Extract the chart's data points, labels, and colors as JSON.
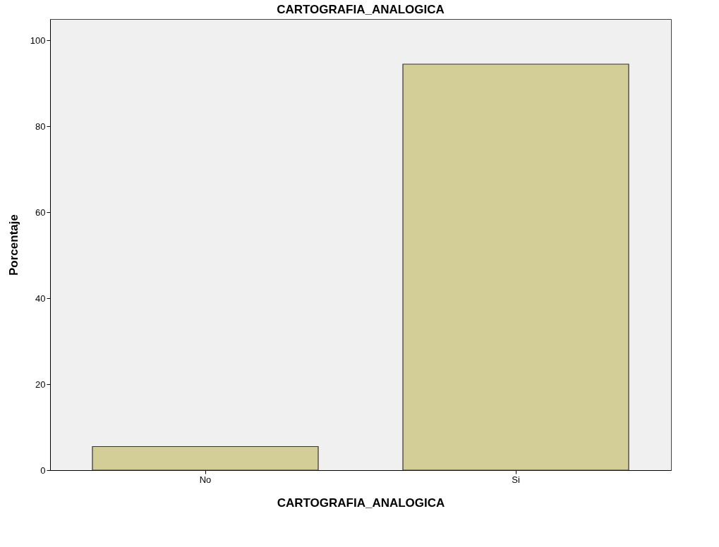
{
  "chart_data": {
    "type": "bar",
    "title": "CARTOGRAFIA_ANALOGICA",
    "xlabel": "CARTOGRAFIA_ANALOGICA",
    "ylabel": "Porcentaje",
    "categories": [
      "No",
      "Si"
    ],
    "values": [
      5.5,
      94.5
    ],
    "color": "#d3cd98",
    "ylim": [
      0,
      105
    ],
    "yticks": [
      0,
      20,
      40,
      60,
      80,
      100
    ],
    "grid": false
  }
}
